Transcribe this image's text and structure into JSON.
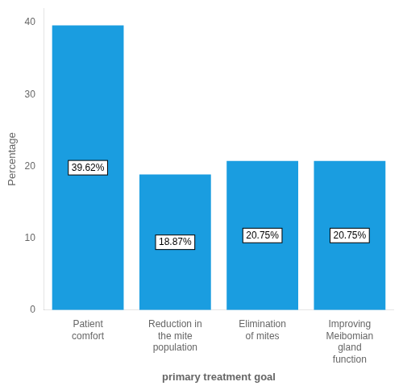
{
  "chart_data": {
    "type": "bar",
    "categories": [
      "Patient\ncomfort",
      "Reduction in\nthe mite\npopulation",
      "Elimination\nof mites",
      "Improving\nMeibomian\ngland\nfunction"
    ],
    "values": [
      39.62,
      18.87,
      20.75,
      20.75
    ],
    "value_labels": [
      "39.62%",
      "18.87%",
      "20.75%",
      "20.75%"
    ],
    "data_labels": true,
    "color": "#1a9de0",
    "xlabel": "primary treatment goal",
    "ylabel": "Percentage",
    "ylim": [
      0,
      42
    ],
    "yticks": [
      0,
      10,
      20,
      30,
      40
    ],
    "grid": false
  }
}
